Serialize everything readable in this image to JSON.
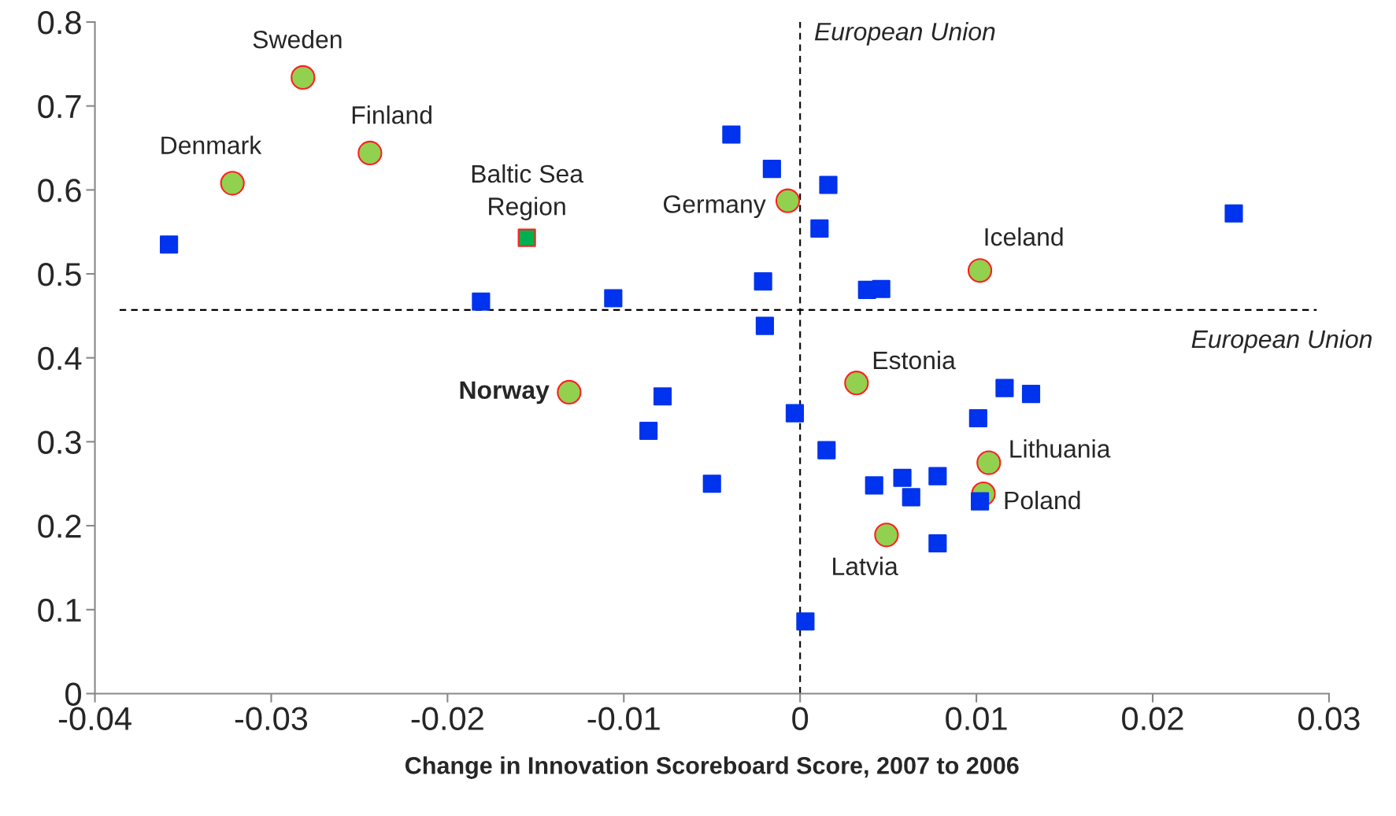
{
  "chart_data": {
    "type": "scatter",
    "xlabel": "Change in Innovation Scoreboard Score, 2007 to 2006",
    "xlim": [
      -0.04,
      0.03
    ],
    "xticks": [
      -0.04,
      -0.03,
      -0.02,
      -0.01,
      0,
      0.01,
      0.02,
      0.03
    ],
    "ylim": [
      0,
      0.8
    ],
    "yticks": [
      0,
      0.1,
      0.2,
      0.3,
      0.4,
      0.5,
      0.6,
      0.7,
      0.8
    ],
    "grid": false,
    "legend": false,
    "series": [
      {
        "color": "#0033ee",
        "marker": "square",
        "x": [
          -0.0358,
          -0.0181,
          -0.0106,
          -0.0039,
          -0.0016,
          -0.0021,
          -0.002,
          0.0016,
          0.0011,
          0.0038,
          0.0046,
          0.0246,
          -0.0078,
          -0.0086,
          -0.005,
          -0.0003,
          0.0015,
          0.0042,
          0.0058,
          0.0063,
          0.0078,
          0.0116,
          0.0131,
          0.0101,
          0.0102,
          0.0078,
          0.0003
        ],
        "values": [
          0.535,
          0.467,
          0.471,
          0.666,
          0.625,
          0.491,
          0.438,
          0.606,
          0.554,
          0.481,
          0.482,
          0.572,
          0.354,
          0.313,
          0.25,
          0.334,
          0.29,
          0.248,
          0.257,
          0.234,
          0.259,
          0.364,
          0.357,
          0.328,
          0.229,
          0.179,
          0.086
        ]
      },
      {
        "color": "#92d050",
        "marker": "circle",
        "x": [
          -0.0282,
          -0.0244,
          -0.0322,
          -0.0007,
          0.0102,
          0.0032,
          -0.0131,
          0.0107,
          0.0104,
          0.0049
        ],
        "values": [
          0.734,
          0.644,
          0.608,
          0.587,
          0.504,
          0.37,
          0.359,
          0.275,
          0.238,
          0.189
        ]
      },
      {
        "color": "#00b050",
        "marker": "square",
        "x": [
          -0.0155
        ],
        "values": [
          0.543
        ]
      }
    ],
    "ref_lines": [
      {
        "axis": "x",
        "value": 0,
        "label": "European Union",
        "line_style": "dashed"
      },
      {
        "axis": "y",
        "value": 0.457,
        "label": "European Union",
        "line_style": "dashed"
      }
    ],
    "annotations": [
      {
        "text": "Sweden",
        "x": -0.0282,
        "y": 0.734
      },
      {
        "text": "Finland",
        "x": -0.0244,
        "y": 0.644
      },
      {
        "text": "Denmark",
        "x": -0.0322,
        "y": 0.608
      },
      {
        "text": "Germany",
        "x": -0.0007,
        "y": 0.587
      },
      {
        "text": "Iceland",
        "x": 0.0102,
        "y": 0.504
      },
      {
        "text": "Estonia",
        "x": 0.0032,
        "y": 0.37
      },
      {
        "text": "Norway",
        "x": -0.0131,
        "y": 0.359
      },
      {
        "text": "Lithuania",
        "x": 0.0107,
        "y": 0.275
      },
      {
        "text": "Poland",
        "x": 0.0104,
        "y": 0.238
      },
      {
        "text": "Latvia",
        "x": 0.0049,
        "y": 0.189
      },
      {
        "text": "Baltic Sea\nRegion",
        "x": -0.0155,
        "y": 0.543
      }
    ]
  }
}
